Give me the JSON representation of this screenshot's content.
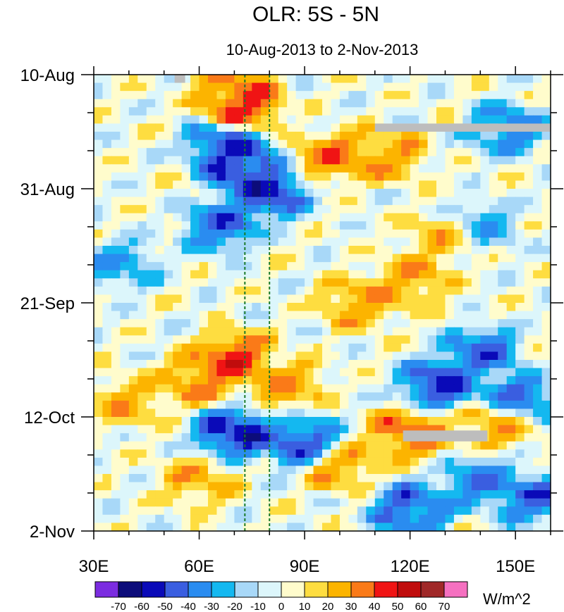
{
  "chart_data": {
    "type": "heatmap",
    "title": "OLR: 5S - 5N",
    "subtitle": "10-Aug-2013 to 2-Nov-2013",
    "x_axis": {
      "range": [
        30,
        160
      ],
      "major_ticks": [
        30,
        60,
        90,
        120,
        150
      ],
      "tick_labels": [
        "30E",
        "60E",
        "90E",
        "120E",
        "150E"
      ],
      "minor_step": 10
    },
    "y_axis": {
      "range_days": [
        0,
        84
      ],
      "major_ticks_days": [
        0,
        21,
        42,
        63,
        84
      ],
      "tick_labels": [
        "10-Aug",
        "31-Aug",
        "21-Sep",
        "12-Oct",
        "2-Nov"
      ],
      "minor_step_days": 7,
      "direction": "time increases downward"
    },
    "reference_lines_lon": [
      73,
      80
    ],
    "units": "W/m^2",
    "colorbar": {
      "labels": [
        "-70",
        "-60",
        "-50",
        "-40",
        "-30",
        "-20",
        "-10",
        "0",
        "10",
        "20",
        "30",
        "40",
        "50",
        "60",
        "70"
      ],
      "colors": [
        "#7b2ce0",
        "#0c0c7a",
        "#0a0ab8",
        "#3a5ee0",
        "#2a8cf0",
        "#14b8f0",
        "#a8d8f8",
        "#dcf6fb",
        "#fffccc",
        "#fedd40",
        "#fcb400",
        "#fa7a18",
        "#f01414",
        "#c00c0c",
        "#a02828",
        "#f570c0"
      ]
    },
    "features": [
      {
        "lon": 72,
        "day": 6,
        "value": 50
      },
      {
        "lon": 70,
        "day": 2,
        "value": 35
      },
      {
        "lon": 72,
        "day": 17,
        "value": -60
      },
      {
        "lon": 67,
        "day": 13,
        "value": -50
      },
      {
        "lon": 80,
        "day": 22,
        "value": -55
      },
      {
        "lon": 66,
        "day": 28,
        "value": -45
      },
      {
        "lon": 98,
        "day": 15,
        "value": 35
      },
      {
        "lon": 113,
        "day": 15,
        "value": 30
      },
      {
        "lon": 148,
        "day": 10,
        "value": -40
      },
      {
        "lon": 120,
        "day": 38,
        "value": 30
      },
      {
        "lon": 105,
        "day": 42,
        "value": 30
      },
      {
        "lon": 70,
        "day": 52,
        "value": 45
      },
      {
        "lon": 60,
        "day": 56,
        "value": 35
      },
      {
        "lon": 85,
        "day": 57,
        "value": 30
      },
      {
        "lon": 140,
        "day": 51,
        "value": -45
      },
      {
        "lon": 128,
        "day": 57,
        "value": -55
      },
      {
        "lon": 150,
        "day": 60,
        "value": -50
      },
      {
        "lon": 70,
        "day": 66,
        "value": -60
      },
      {
        "lon": 90,
        "day": 68,
        "value": -55
      },
      {
        "lon": 120,
        "day": 66,
        "value": 40
      },
      {
        "lon": 145,
        "day": 64,
        "value": 35
      },
      {
        "lon": 100,
        "day": 72,
        "value": 30
      },
      {
        "lon": 140,
        "day": 75,
        "value": -40
      },
      {
        "lon": 120,
        "day": 80,
        "value": -50
      },
      {
        "lon": 155,
        "day": 78,
        "value": -45
      },
      {
        "lon": 60,
        "day": 75,
        "value": 25
      },
      {
        "lon": 40,
        "day": 60,
        "value": 25
      },
      {
        "lon": 38,
        "day": 35,
        "value": -30
      },
      {
        "lon": 140,
        "day": 28,
        "value": -30
      },
      {
        "lon": 130,
        "day": 30,
        "value": 25
      }
    ],
    "missing_regions": [
      {
        "lon": [
          110,
          160
        ],
        "day": [
          9,
          10.5
        ]
      },
      {
        "lon": [
          118,
          142
        ],
        "day": [
          65.5,
          67.5
        ]
      },
      {
        "lon": [
          53,
          56
        ],
        "day": [
          0,
          1.5
        ]
      }
    ]
  }
}
